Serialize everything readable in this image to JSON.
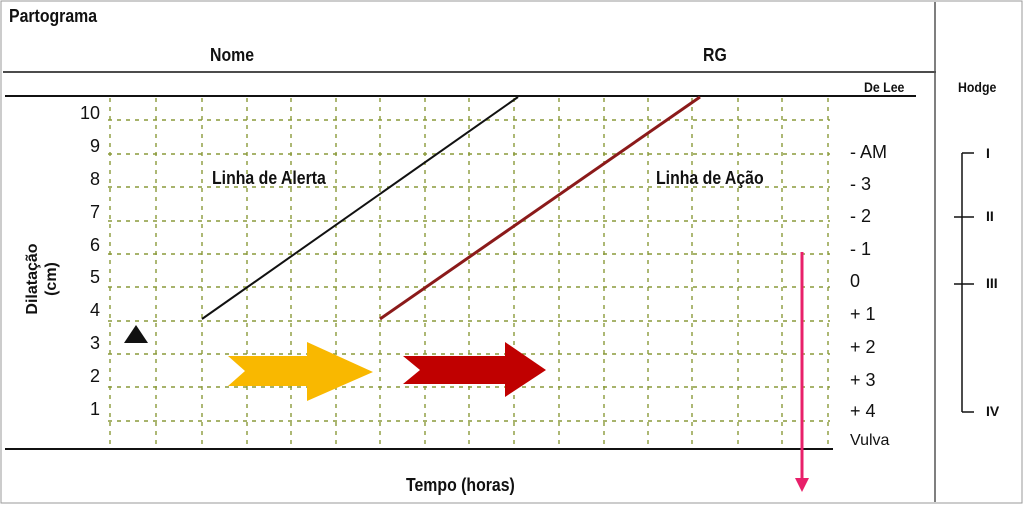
{
  "header": {
    "title": "Partograma",
    "name_label": "Nome",
    "rg_label": "RG"
  },
  "y_axis": {
    "label_line1": "Dilatação",
    "label_line2": "(cm)",
    "ticks": [
      "10",
      "9",
      "8",
      "7",
      "6",
      "5",
      "4",
      "3",
      "2",
      "1"
    ]
  },
  "x_axis": {
    "label": "Tempo (horas)"
  },
  "de_lee": {
    "title": "De Lee",
    "levels": [
      "- AM",
      "- 3",
      "- 2",
      "- 1",
      "0",
      "+ 1",
      "+ 2",
      "+ 3",
      "+ 4",
      "Vulva"
    ]
  },
  "hodge": {
    "title": "Hodge",
    "planes": [
      "I",
      "II",
      "III",
      "IV"
    ]
  },
  "lines": {
    "alert_label": "Linha de Alerta",
    "action_label": "Linha de Ação"
  },
  "colors": {
    "grid": "#8a9a3a",
    "alert_line": "#111111",
    "action_line": "#8b1a1a",
    "yellow_arrow": "#f9b800",
    "red_arrow": "#c00000",
    "pink_arrow": "#e8206a"
  }
}
